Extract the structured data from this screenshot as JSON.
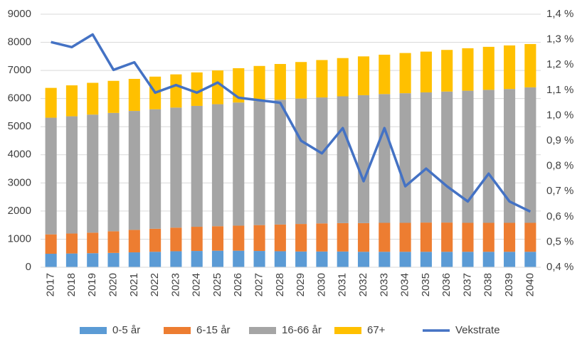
{
  "chart_data": {
    "type": "bar",
    "stacked": true,
    "categories": [
      "2017",
      "2018",
      "2019",
      "2020",
      "2021",
      "2022",
      "2023",
      "2024",
      "2025",
      "2026",
      "2027",
      "2028",
      "2029",
      "2030",
      "2031",
      "2032",
      "2033",
      "2034",
      "2035",
      "2036",
      "2037",
      "2038",
      "2039",
      "2040"
    ],
    "series": [
      {
        "name": "0-5 år",
        "color": "#5b9bd5",
        "values": [
          480,
          490,
          500,
          510,
          530,
          550,
          570,
          580,
          590,
          590,
          580,
          570,
          560,
          560,
          560,
          550,
          550,
          550,
          550,
          550,
          550,
          550,
          550,
          550
        ]
      },
      {
        "name": "6-15 år",
        "color": "#ed7d31",
        "values": [
          690,
          710,
          730,
          770,
          800,
          820,
          840,
          860,
          870,
          890,
          920,
          950,
          980,
          1000,
          1010,
          1020,
          1030,
          1030,
          1040,
          1040,
          1030,
          1030,
          1030,
          1030
        ]
      },
      {
        "name": "16-66 år",
        "color": "#a5a5a5",
        "values": [
          4150,
          4170,
          4200,
          4210,
          4230,
          4250,
          4270,
          4300,
          4340,
          4380,
          4410,
          4440,
          4460,
          4480,
          4510,
          4550,
          4580,
          4610,
          4630,
          4660,
          4700,
          4730,
          4760,
          4820
        ]
      },
      {
        "name": "67+",
        "color": "#ffc000",
        "values": [
          1060,
          1100,
          1130,
          1140,
          1140,
          1160,
          1180,
          1190,
          1200,
          1220,
          1250,
          1270,
          1300,
          1330,
          1360,
          1380,
          1400,
          1430,
          1450,
          1480,
          1510,
          1530,
          1550,
          1540
        ]
      },
      {
        "name": "Vekstrate",
        "color": "#4472c4",
        "type": "line",
        "axis": "y2",
        "values": [
          1.29,
          1.27,
          1.32,
          1.18,
          1.21,
          1.09,
          1.12,
          1.09,
          1.13,
          1.07,
          1.06,
          1.05,
          0.9,
          0.85,
          0.95,
          0.74,
          0.95,
          0.72,
          0.79,
          0.72,
          0.66,
          0.77,
          0.66,
          0.62
        ]
      }
    ],
    "ylim": [
      0,
      9000
    ],
    "yticks": [
      0,
      1000,
      2000,
      3000,
      4000,
      5000,
      6000,
      7000,
      8000,
      9000
    ],
    "y2lim": [
      0.4,
      1.4
    ],
    "y2ticks": [
      {
        "value": 0.4,
        "label": "0,4 %"
      },
      {
        "value": 0.5,
        "label": "0,5 %"
      },
      {
        "value": 0.6,
        "label": "0,6 %"
      },
      {
        "value": 0.7,
        "label": "0,7 %"
      },
      {
        "value": 0.8,
        "label": "0,8 %"
      },
      {
        "value": 0.9,
        "label": "0,9 %"
      },
      {
        "value": 1.0,
        "label": "1,0 %"
      },
      {
        "value": 1.1,
        "label": "1,1 %"
      },
      {
        "value": 1.2,
        "label": "1,2 %"
      },
      {
        "value": 1.3,
        "label": "1,3 %"
      },
      {
        "value": 1.4,
        "label": "1,4 %"
      }
    ],
    "grid": true,
    "legend": "bottom"
  }
}
